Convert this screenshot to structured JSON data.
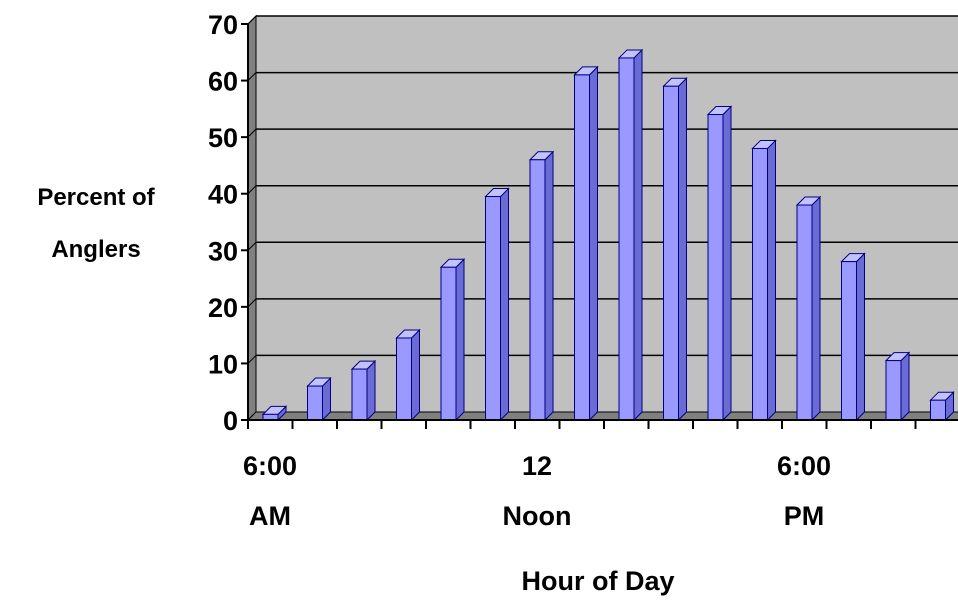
{
  "chart_data": {
    "type": "bar",
    "style": "3d-column",
    "ylabel_lines": [
      "Percent of",
      "Anglers"
    ],
    "xlabel": "Hour of Day",
    "ylim": [
      0,
      70
    ],
    "yticks": [
      "0",
      "10",
      "20",
      "30",
      "40",
      "50",
      "60",
      "70"
    ],
    "grid": true,
    "legend": "none",
    "x_tick_labels": [
      {
        "index": 0,
        "lines": [
          "6:00",
          "AM"
        ]
      },
      {
        "index": 6,
        "lines": [
          "12",
          "Noon"
        ]
      },
      {
        "index": 12,
        "lines": [
          "6:00",
          "PM"
        ]
      }
    ],
    "series": [
      {
        "values": [
          1,
          6,
          9,
          14.5,
          27,
          39.5,
          46,
          61,
          64,
          59,
          54,
          48,
          38,
          28,
          10.5,
          3.5
        ]
      }
    ],
    "colors": {
      "bar_front": "#9999ff",
      "bar_side": "#6b6bd6",
      "bar_top": "#c2c2ff",
      "bar_outline": "#000080",
      "plot_bg": "#c0c0c0",
      "wall_side": "#808080",
      "grid": "#000000"
    }
  }
}
